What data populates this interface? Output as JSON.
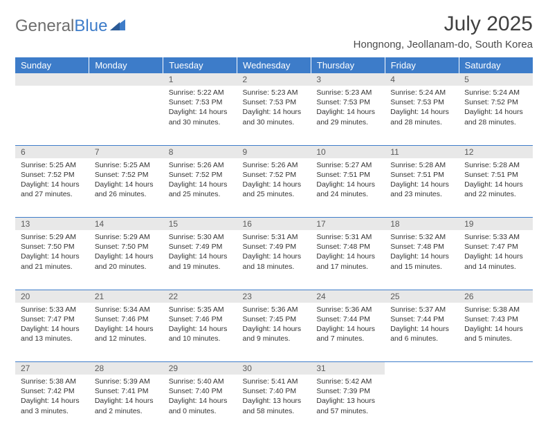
{
  "brand": {
    "part1": "General",
    "part2": "Blue"
  },
  "title": "July 2025",
  "location": "Hongnong, Jeollanam-do, South Korea",
  "colors": {
    "header_bg": "#3d7cc9",
    "header_text": "#ffffff",
    "daynum_bg": "#e8e8e8",
    "daynum_text": "#5a5a5a",
    "border": "#3d7cc9",
    "body_text": "#333333",
    "title_text": "#404040",
    "logo_gray": "#6e6e6e",
    "logo_blue": "#3d7cc9",
    "background": "#ffffff"
  },
  "typography": {
    "title_fontsize": 30,
    "location_fontsize": 15,
    "header_fontsize": 13,
    "daynum_fontsize": 12,
    "cell_fontsize": 10.5,
    "logo_fontsize": 24
  },
  "layout": {
    "columns": 7,
    "rows": 5,
    "first_weekday_col": 2
  },
  "weekdays": [
    "Sunday",
    "Monday",
    "Tuesday",
    "Wednesday",
    "Thursday",
    "Friday",
    "Saturday"
  ],
  "days": [
    {
      "n": "1",
      "sr": "5:22 AM",
      "ss": "7:53 PM",
      "dl": "14 hours and 30 minutes."
    },
    {
      "n": "2",
      "sr": "5:23 AM",
      "ss": "7:53 PM",
      "dl": "14 hours and 30 minutes."
    },
    {
      "n": "3",
      "sr": "5:23 AM",
      "ss": "7:53 PM",
      "dl": "14 hours and 29 minutes."
    },
    {
      "n": "4",
      "sr": "5:24 AM",
      "ss": "7:53 PM",
      "dl": "14 hours and 28 minutes."
    },
    {
      "n": "5",
      "sr": "5:24 AM",
      "ss": "7:52 PM",
      "dl": "14 hours and 28 minutes."
    },
    {
      "n": "6",
      "sr": "5:25 AM",
      "ss": "7:52 PM",
      "dl": "14 hours and 27 minutes."
    },
    {
      "n": "7",
      "sr": "5:25 AM",
      "ss": "7:52 PM",
      "dl": "14 hours and 26 minutes."
    },
    {
      "n": "8",
      "sr": "5:26 AM",
      "ss": "7:52 PM",
      "dl": "14 hours and 25 minutes."
    },
    {
      "n": "9",
      "sr": "5:26 AM",
      "ss": "7:52 PM",
      "dl": "14 hours and 25 minutes."
    },
    {
      "n": "10",
      "sr": "5:27 AM",
      "ss": "7:51 PM",
      "dl": "14 hours and 24 minutes."
    },
    {
      "n": "11",
      "sr": "5:28 AM",
      "ss": "7:51 PM",
      "dl": "14 hours and 23 minutes."
    },
    {
      "n": "12",
      "sr": "5:28 AM",
      "ss": "7:51 PM",
      "dl": "14 hours and 22 minutes."
    },
    {
      "n": "13",
      "sr": "5:29 AM",
      "ss": "7:50 PM",
      "dl": "14 hours and 21 minutes."
    },
    {
      "n": "14",
      "sr": "5:29 AM",
      "ss": "7:50 PM",
      "dl": "14 hours and 20 minutes."
    },
    {
      "n": "15",
      "sr": "5:30 AM",
      "ss": "7:49 PM",
      "dl": "14 hours and 19 minutes."
    },
    {
      "n": "16",
      "sr": "5:31 AM",
      "ss": "7:49 PM",
      "dl": "14 hours and 18 minutes."
    },
    {
      "n": "17",
      "sr": "5:31 AM",
      "ss": "7:48 PM",
      "dl": "14 hours and 17 minutes."
    },
    {
      "n": "18",
      "sr": "5:32 AM",
      "ss": "7:48 PM",
      "dl": "14 hours and 15 minutes."
    },
    {
      "n": "19",
      "sr": "5:33 AM",
      "ss": "7:47 PM",
      "dl": "14 hours and 14 minutes."
    },
    {
      "n": "20",
      "sr": "5:33 AM",
      "ss": "7:47 PM",
      "dl": "14 hours and 13 minutes."
    },
    {
      "n": "21",
      "sr": "5:34 AM",
      "ss": "7:46 PM",
      "dl": "14 hours and 12 minutes."
    },
    {
      "n": "22",
      "sr": "5:35 AM",
      "ss": "7:46 PM",
      "dl": "14 hours and 10 minutes."
    },
    {
      "n": "23",
      "sr": "5:36 AM",
      "ss": "7:45 PM",
      "dl": "14 hours and 9 minutes."
    },
    {
      "n": "24",
      "sr": "5:36 AM",
      "ss": "7:44 PM",
      "dl": "14 hours and 7 minutes."
    },
    {
      "n": "25",
      "sr": "5:37 AM",
      "ss": "7:44 PM",
      "dl": "14 hours and 6 minutes."
    },
    {
      "n": "26",
      "sr": "5:38 AM",
      "ss": "7:43 PM",
      "dl": "14 hours and 5 minutes."
    },
    {
      "n": "27",
      "sr": "5:38 AM",
      "ss": "7:42 PM",
      "dl": "14 hours and 3 minutes."
    },
    {
      "n": "28",
      "sr": "5:39 AM",
      "ss": "7:41 PM",
      "dl": "14 hours and 2 minutes."
    },
    {
      "n": "29",
      "sr": "5:40 AM",
      "ss": "7:40 PM",
      "dl": "14 hours and 0 minutes."
    },
    {
      "n": "30",
      "sr": "5:41 AM",
      "ss": "7:40 PM",
      "dl": "13 hours and 58 minutes."
    },
    {
      "n": "31",
      "sr": "5:42 AM",
      "ss": "7:39 PM",
      "dl": "13 hours and 57 minutes."
    }
  ],
  "labels": {
    "sunrise": "Sunrise:",
    "sunset": "Sunset:",
    "daylight": "Daylight:"
  }
}
